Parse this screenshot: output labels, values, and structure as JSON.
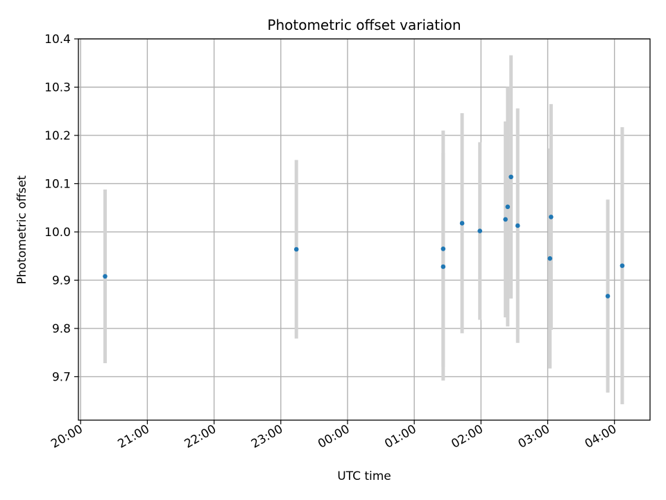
{
  "chart_data": {
    "type": "scatter",
    "title": "Photometric offset variation",
    "xlabel": "UTC time",
    "ylabel": "Photometric offset",
    "x_tick_labels": [
      "20:00",
      "21:00",
      "22:00",
      "23:00",
      "00:00",
      "01:00",
      "02:00",
      "03:00",
      "04:00"
    ],
    "y_tick_labels": [
      "9.7",
      "9.8",
      "9.9",
      "10.0",
      "10.1",
      "10.2",
      "10.3",
      "10.4"
    ],
    "y_ticks": [
      9.7,
      9.8,
      9.9,
      10.0,
      10.1,
      10.2,
      10.3,
      10.4
    ],
    "ylim": [
      9.61,
      10.4
    ],
    "xlim": [
      "19:58",
      "04:32"
    ],
    "grid": true,
    "colors": {
      "marker": "#1f77b4",
      "errorbar": "#d3d3d3",
      "grid": "#b0b0b0"
    },
    "points": [
      {
        "x": "20:22",
        "y": 9.908,
        "yerr": 0.18
      },
      {
        "x": "23:14",
        "y": 9.964,
        "yerr": 0.185
      },
      {
        "x": "01:26",
        "y": 9.965,
        "yerr": 0.245
      },
      {
        "x": "01:26",
        "y": 9.928,
        "yerr": 0.236
      },
      {
        "x": "01:43",
        "y": 10.018,
        "yerr": 0.228
      },
      {
        "x": "01:59",
        "y": 10.002,
        "yerr": 0.184
      },
      {
        "x": "02:22",
        "y": 10.026,
        "yerr": 0.203
      },
      {
        "x": "02:24",
        "y": 10.052,
        "yerr": 0.248
      },
      {
        "x": "02:27",
        "y": 10.114,
        "yerr": 0.252
      },
      {
        "x": "02:33",
        "y": 10.013,
        "yerr": 0.243
      },
      {
        "x": "03:02",
        "y": 9.945,
        "yerr": 0.228
      },
      {
        "x": "03:03",
        "y": 10.031,
        "yerr": 0.234
      },
      {
        "x": "03:54",
        "y": 9.867,
        "yerr": 0.2
      },
      {
        "x": "04:07",
        "y": 9.93,
        "yerr": 0.287
      }
    ]
  }
}
